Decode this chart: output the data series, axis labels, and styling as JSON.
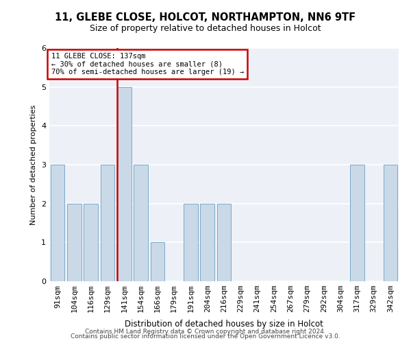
{
  "title1": "11, GLEBE CLOSE, HOLCOT, NORTHAMPTON, NN6 9TF",
  "title2": "Size of property relative to detached houses in Holcot",
  "xlabel": "Distribution of detached houses by size in Holcot",
  "ylabel": "Number of detached properties",
  "categories": [
    "91sqm",
    "104sqm",
    "116sqm",
    "129sqm",
    "141sqm",
    "154sqm",
    "166sqm",
    "179sqm",
    "191sqm",
    "204sqm",
    "216sqm",
    "229sqm",
    "241sqm",
    "254sqm",
    "267sqm",
    "279sqm",
    "292sqm",
    "304sqm",
    "317sqm",
    "329sqm",
    "342sqm"
  ],
  "values": [
    3,
    2,
    2,
    3,
    5,
    3,
    1,
    0,
    2,
    2,
    2,
    0,
    0,
    0,
    0,
    0,
    0,
    0,
    3,
    0,
    3
  ],
  "bar_color": "#c9d9e8",
  "bar_edge_color": "#7aaac8",
  "property_line_x": 3.575,
  "annotation_line1": "11 GLEBE CLOSE: 137sqm",
  "annotation_line2": "← 30% of detached houses are smaller (8)",
  "annotation_line3": "70% of semi-detached houses are larger (19) →",
  "vline_color": "#cc0000",
  "footer1": "Contains HM Land Registry data © Crown copyright and database right 2024.",
  "footer2": "Contains public sector information licensed under the Open Government Licence v3.0.",
  "ylim": [
    0,
    6
  ],
  "bg_color": "#edf1f7"
}
